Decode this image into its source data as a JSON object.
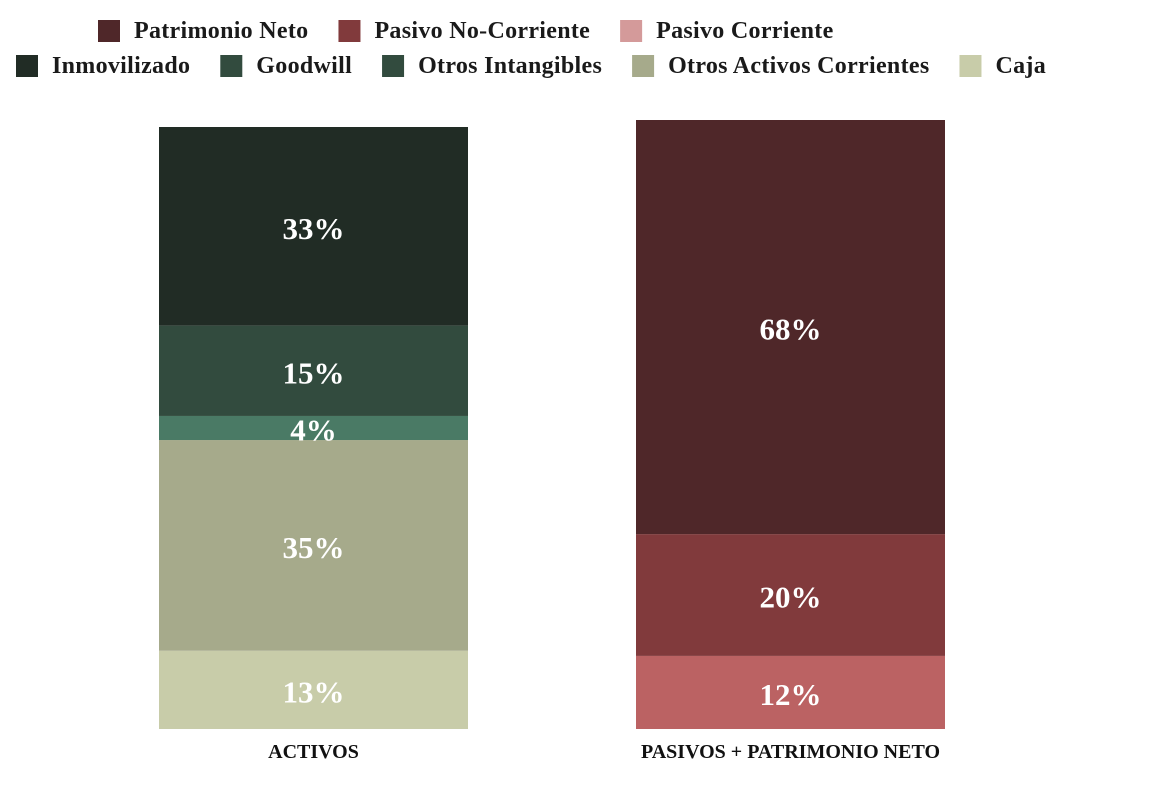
{
  "chart_data": {
    "type": "bar",
    "stacked": true,
    "normalized_percent": true,
    "categories": [
      "ACTIVOS",
      "PASIVOS + PATRIMONIO NETO"
    ],
    "legend_placement": "top",
    "grid": false,
    "ylim": [
      0,
      100
    ],
    "series": [
      {
        "name": "Patrimonio Neto",
        "color": "#4f2729",
        "values": [
          null,
          68
        ],
        "labels": [
          null,
          "68%"
        ]
      },
      {
        "name": "Pasivo No-Corriente",
        "color": "#813a3c",
        "values": [
          null,
          20
        ],
        "labels": [
          null,
          "20%"
        ]
      },
      {
        "name": "Pasivo Corriente",
        "color": "#bb6263",
        "legend_color": "#d49a9a",
        "values": [
          null,
          12
        ],
        "labels": [
          null,
          "12%"
        ]
      },
      {
        "name": "Inmovilizado",
        "color": "#212c25",
        "values": [
          33,
          null
        ],
        "labels": [
          "33%",
          null
        ]
      },
      {
        "name": "Goodwill",
        "color": "#324b3e",
        "values": [
          15,
          null
        ],
        "labels": [
          "15%",
          null
        ]
      },
      {
        "name": "Otros Intangibles",
        "color": "#4a7a65",
        "legend_color": "#324b3e",
        "values": [
          4,
          null
        ],
        "labels": [
          "4%",
          null
        ]
      },
      {
        "name": "Otros Activos Corrientes",
        "color": "#a6aa8b",
        "values": [
          35,
          null
        ],
        "labels": [
          "35%",
          null
        ]
      },
      {
        "name": "Caja",
        "color": "#c8cca9",
        "values": [
          13,
          null
        ],
        "labels": [
          "13%",
          null
        ]
      }
    ],
    "stack_order_bottom_to_top": [
      [
        "Caja",
        "Otros Activos Corrientes",
        "Otros Intangibles",
        "Goodwill",
        "Inmovilizado"
      ],
      [
        "Pasivo Corriente",
        "Pasivo No-Corriente",
        "Patrimonio Neto"
      ]
    ]
  }
}
